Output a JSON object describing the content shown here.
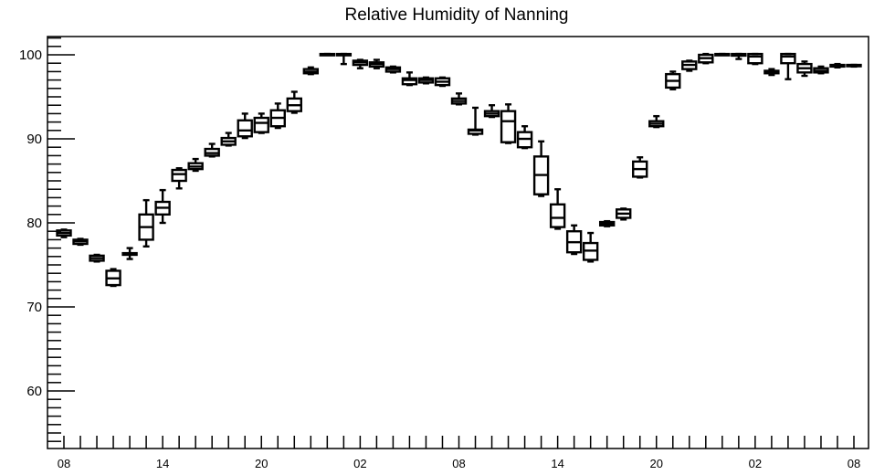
{
  "chart_data": {
    "type": "box",
    "title": "Relative Humidity of Nanning",
    "xlabel": "",
    "ylabel": "",
    "ylim": [
      53,
      102
    ],
    "yticks": [
      60,
      70,
      80,
      90,
      100
    ],
    "xlim": [
      -0.5,
      48.5
    ],
    "xticks": [
      {
        "x": 0,
        "label": "08"
      },
      {
        "x": 6,
        "label": "14"
      },
      {
        "x": 12,
        "label": "20"
      },
      {
        "x": 18,
        "label": "02"
      },
      {
        "x": 24,
        "label": "08"
      },
      {
        "x": 30,
        "label": "14"
      },
      {
        "x": 36,
        "label": "20"
      },
      {
        "x": 42,
        "label": "02"
      },
      {
        "x": 48,
        "label": "08"
      }
    ],
    "grid": false,
    "boxes": [
      {
        "x": 0,
        "min": 78.3,
        "q1": 78.5,
        "median": 78.8,
        "q3": 79.1,
        "max": 79.2
      },
      {
        "x": 1,
        "min": 77.4,
        "q1": 77.5,
        "median": 77.8,
        "q3": 78.0,
        "max": 78.1
      },
      {
        "x": 2,
        "min": 75.4,
        "q1": 75.5,
        "median": 75.8,
        "q3": 76.1,
        "max": 76.2
      },
      {
        "x": 3,
        "min": 72.5,
        "q1": 72.6,
        "median": 73.4,
        "q3": 74.3,
        "max": 74.5
      },
      {
        "x": 4,
        "min": 75.7,
        "q1": 76.2,
        "median": 76.3,
        "q3": 76.4,
        "max": 77.0
      },
      {
        "x": 5,
        "min": 77.2,
        "q1": 78.0,
        "median": 79.5,
        "q3": 81.0,
        "max": 82.7
      },
      {
        "x": 6,
        "min": 80.0,
        "q1": 81.0,
        "median": 81.8,
        "q3": 82.5,
        "max": 83.9
      },
      {
        "x": 7,
        "min": 84.1,
        "q1": 85.0,
        "median": 85.8,
        "q3": 86.3,
        "max": 86.5
      },
      {
        "x": 8,
        "min": 86.2,
        "q1": 86.4,
        "median": 86.7,
        "q3": 87.1,
        "max": 87.6
      },
      {
        "x": 9,
        "min": 87.9,
        "q1": 88.0,
        "median": 88.3,
        "q3": 88.8,
        "max": 89.4
      },
      {
        "x": 10,
        "min": 89.2,
        "q1": 89.3,
        "median": 89.7,
        "q3": 90.1,
        "max": 90.7
      },
      {
        "x": 11,
        "min": 90.1,
        "q1": 90.3,
        "median": 91.0,
        "q3": 92.2,
        "max": 93.0
      },
      {
        "x": 12,
        "min": 90.7,
        "q1": 90.8,
        "median": 91.9,
        "q3": 92.5,
        "max": 93.0
      },
      {
        "x": 13,
        "min": 91.3,
        "q1": 91.5,
        "median": 92.5,
        "q3": 93.4,
        "max": 94.2
      },
      {
        "x": 14,
        "min": 93.1,
        "q1": 93.3,
        "median": 94.0,
        "q3": 94.8,
        "max": 95.6
      },
      {
        "x": 15,
        "min": 97.7,
        "q1": 97.8,
        "median": 98.0,
        "q3": 98.3,
        "max": 98.5
      },
      {
        "x": 16,
        "min": 100.0,
        "q1": 100.0,
        "median": 100.0,
        "q3": 100.1,
        "max": 100.1
      },
      {
        "x": 17,
        "min": 98.9,
        "q1": 100.0,
        "median": 100.0,
        "q3": 100.1,
        "max": 100.1
      },
      {
        "x": 18,
        "min": 98.4,
        "q1": 98.8,
        "median": 99.1,
        "q3": 99.3,
        "max": 99.4
      },
      {
        "x": 19,
        "min": 98.4,
        "q1": 98.6,
        "median": 98.9,
        "q3": 99.1,
        "max": 99.4
      },
      {
        "x": 20,
        "min": 97.9,
        "q1": 98.0,
        "median": 98.3,
        "q3": 98.5,
        "max": 98.6
      },
      {
        "x": 21,
        "min": 96.4,
        "q1": 96.5,
        "median": 97.0,
        "q3": 97.2,
        "max": 97.9
      },
      {
        "x": 22,
        "min": 96.6,
        "q1": 96.7,
        "median": 97.0,
        "q3": 97.2,
        "max": 97.3
      },
      {
        "x": 23,
        "min": 96.3,
        "q1": 96.4,
        "median": 96.8,
        "q3": 97.2,
        "max": 97.3
      },
      {
        "x": 24,
        "min": 94.1,
        "q1": 94.2,
        "median": 94.5,
        "q3": 94.8,
        "max": 95.4
      },
      {
        "x": 25,
        "min": 90.5,
        "q1": 90.6,
        "median": 91.0,
        "q3": 91.1,
        "max": 93.7
      },
      {
        "x": 26,
        "min": 92.6,
        "q1": 92.7,
        "median": 93.0,
        "q3": 93.3,
        "max": 94.0
      },
      {
        "x": 27,
        "min": 89.5,
        "q1": 89.6,
        "median": 92.1,
        "q3": 93.3,
        "max": 94.1
      },
      {
        "x": 28,
        "min": 88.9,
        "q1": 89.0,
        "median": 90.0,
        "q3": 90.8,
        "max": 91.5
      },
      {
        "x": 29,
        "min": 83.2,
        "q1": 83.4,
        "median": 85.7,
        "q3": 87.9,
        "max": 89.7
      },
      {
        "x": 30,
        "min": 79.3,
        "q1": 79.5,
        "median": 80.6,
        "q3": 82.2,
        "max": 84.0
      },
      {
        "x": 31,
        "min": 76.3,
        "q1": 76.5,
        "median": 77.7,
        "q3": 79.0,
        "max": 79.7
      },
      {
        "x": 32,
        "min": 75.4,
        "q1": 75.6,
        "median": 76.7,
        "q3": 77.6,
        "max": 78.8
      },
      {
        "x": 33,
        "min": 79.6,
        "q1": 79.7,
        "median": 79.9,
        "q3": 80.1,
        "max": 80.2
      },
      {
        "x": 34,
        "min": 80.4,
        "q1": 80.6,
        "median": 81.1,
        "q3": 81.6,
        "max": 81.7
      },
      {
        "x": 35,
        "min": 85.4,
        "q1": 85.5,
        "median": 86.4,
        "q3": 87.3,
        "max": 87.8
      },
      {
        "x": 36,
        "min": 91.4,
        "q1": 91.5,
        "median": 91.8,
        "q3": 92.1,
        "max": 92.7
      },
      {
        "x": 37,
        "min": 95.9,
        "q1": 96.1,
        "median": 96.9,
        "q3": 97.7,
        "max": 98.0
      },
      {
        "x": 38,
        "min": 98.1,
        "q1": 98.3,
        "median": 98.8,
        "q3": 99.2,
        "max": 99.3
      },
      {
        "x": 39,
        "min": 99.0,
        "q1": 99.1,
        "median": 99.6,
        "q3": 100.0,
        "max": 100.1
      },
      {
        "x": 40,
        "min": 100.0,
        "q1": 100.0,
        "median": 100.0,
        "q3": 100.1,
        "max": 100.1
      },
      {
        "x": 41,
        "min": 99.5,
        "q1": 99.9,
        "median": 100.0,
        "q3": 100.1,
        "max": 100.1
      },
      {
        "x": 42,
        "min": 98.9,
        "q1": 99.0,
        "median": 99.8,
        "q3": 100.1,
        "max": 100.1
      },
      {
        "x": 43,
        "min": 97.6,
        "q1": 97.8,
        "median": 98.0,
        "q3": 98.1,
        "max": 98.3
      },
      {
        "x": 44,
        "min": 97.1,
        "q1": 99.0,
        "median": 99.8,
        "q3": 100.1,
        "max": 100.1
      },
      {
        "x": 45,
        "min": 97.5,
        "q1": 97.9,
        "median": 98.4,
        "q3": 98.9,
        "max": 99.2
      },
      {
        "x": 46,
        "min": 97.8,
        "q1": 97.9,
        "median": 98.1,
        "q3": 98.4,
        "max": 98.6
      },
      {
        "x": 47,
        "min": 98.5,
        "q1": 98.6,
        "median": 98.7,
        "q3": 98.8,
        "max": 98.9
      },
      {
        "x": 48,
        "min": 98.6,
        "q1": 98.7,
        "median": 98.7,
        "q3": 98.8,
        "max": 98.8
      }
    ]
  }
}
